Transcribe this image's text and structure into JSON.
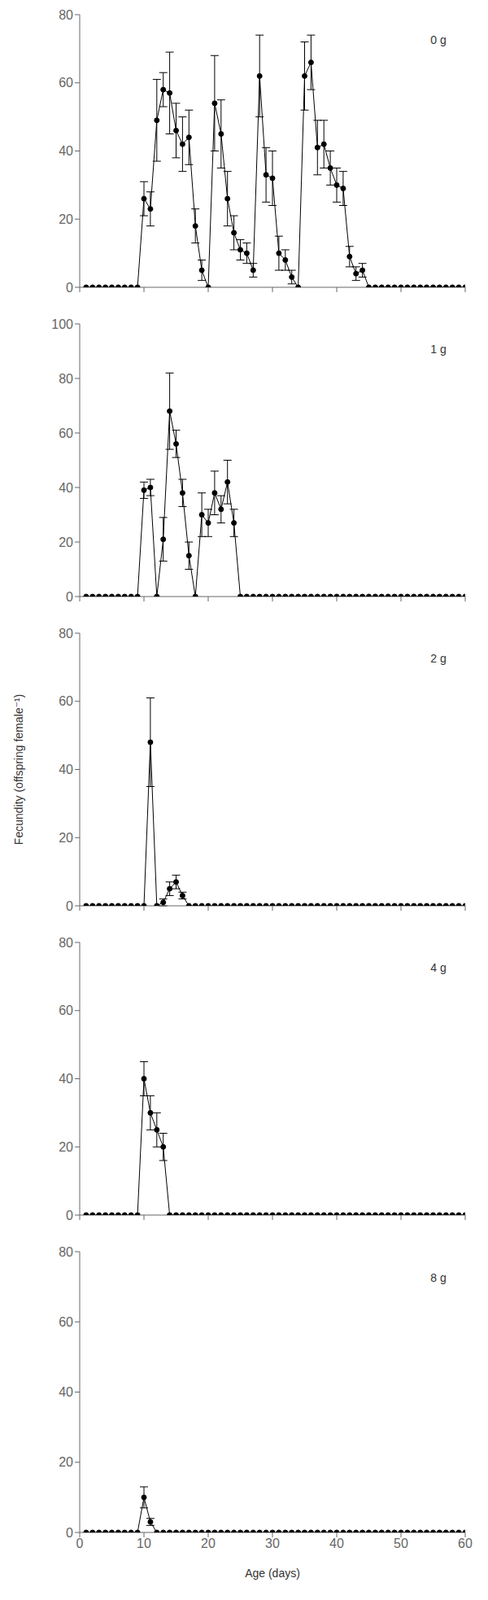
{
  "chart_data": [
    {
      "type": "line",
      "annotation": "0 g",
      "color": "#000000",
      "marker": "circle",
      "grid": false,
      "tick_labels": "y",
      "x": [
        1,
        2,
        3,
        4,
        5,
        6,
        7,
        8,
        9,
        10,
        11,
        12,
        13,
        14,
        15,
        16,
        17,
        18,
        19,
        20,
        21,
        22,
        23,
        24,
        25,
        26,
        27,
        28,
        29,
        30,
        31,
        32,
        33,
        34,
        35,
        36,
        37,
        38,
        39,
        40,
        41,
        42,
        43,
        44,
        45,
        46,
        47,
        48,
        49,
        50,
        51,
        52,
        53,
        54,
        55,
        56,
        57,
        58,
        59,
        60
      ],
      "values": [
        0,
        0,
        0,
        0,
        0,
        0,
        0,
        0,
        0,
        26,
        23,
        49,
        58,
        57,
        46,
        42,
        44,
        18,
        5,
        0,
        54,
        45,
        26,
        16,
        11,
        10,
        5,
        62,
        33,
        32,
        10,
        8,
        3,
        0,
        62,
        66,
        41,
        42,
        35,
        30,
        29,
        9,
        4,
        5,
        0,
        0,
        0,
        0,
        0,
        0,
        0,
        0,
        0,
        0,
        0,
        0,
        0,
        0,
        0,
        0
      ],
      "errors": [
        0,
        0,
        0,
        0,
        0,
        0,
        0,
        0,
        0,
        5,
        5,
        12,
        5,
        12,
        8,
        8,
        8,
        5,
        3,
        0,
        14,
        10,
        8,
        5,
        3,
        3,
        2,
        12,
        8,
        8,
        5,
        3,
        2,
        0,
        10,
        8,
        8,
        7,
        5,
        5,
        5,
        3,
        2,
        2,
        0,
        0,
        0,
        0,
        0,
        0,
        0,
        0,
        0,
        0,
        0,
        0,
        0,
        0,
        0,
        0
      ],
      "xlim": [
        0,
        60
      ],
      "ylim": [
        0,
        80
      ],
      "xticks": [
        0,
        10,
        20,
        30,
        40,
        50,
        60
      ],
      "yticks": [
        0,
        20,
        40,
        60,
        80
      ]
    },
    {
      "type": "line",
      "annotation": "1 g",
      "color": "#000000",
      "marker": "circle",
      "grid": false,
      "tick_labels": "y",
      "x": [
        1,
        2,
        3,
        4,
        5,
        6,
        7,
        8,
        9,
        10,
        11,
        12,
        13,
        14,
        15,
        16,
        17,
        18,
        19,
        20,
        21,
        22,
        23,
        24,
        25,
        26,
        27,
        28,
        29,
        30,
        31,
        32,
        33,
        34,
        35,
        36,
        37,
        38,
        39,
        40,
        41,
        42,
        43,
        44,
        45,
        46,
        47,
        48,
        49,
        50,
        51,
        52,
        53,
        54,
        55,
        56,
        57,
        58,
        59,
        60
      ],
      "values": [
        0,
        0,
        0,
        0,
        0,
        0,
        0,
        0,
        0,
        39,
        40,
        0,
        21,
        68,
        56,
        38,
        15,
        0,
        30,
        27,
        38,
        32,
        42,
        27,
        0,
        0,
        0,
        0,
        0,
        0,
        0,
        0,
        0,
        0,
        0,
        0,
        0,
        0,
        0,
        0,
        0,
        0,
        0,
        0,
        0,
        0,
        0,
        0,
        0,
        0,
        0,
        0,
        0,
        0,
        0,
        0,
        0,
        0,
        0,
        0
      ],
      "errors": [
        0,
        0,
        0,
        0,
        0,
        0,
        0,
        0,
        0,
        3,
        3,
        0,
        8,
        14,
        5,
        5,
        5,
        0,
        8,
        5,
        8,
        5,
        8,
        5,
        0,
        0,
        0,
        0,
        0,
        0,
        0,
        0,
        0,
        0,
        0,
        0,
        0,
        0,
        0,
        0,
        0,
        0,
        0,
        0,
        0,
        0,
        0,
        0,
        0,
        0,
        0,
        0,
        0,
        0,
        0,
        0,
        0,
        0,
        0,
        0
      ],
      "xlim": [
        0,
        60
      ],
      "ylim": [
        0,
        100
      ],
      "xticks": [
        0,
        10,
        20,
        30,
        40,
        50,
        60
      ],
      "yticks": [
        0,
        20,
        40,
        60,
        80,
        100
      ]
    },
    {
      "type": "line",
      "annotation": "2 g",
      "color": "#000000",
      "marker": "circle",
      "grid": false,
      "tick_labels": "y",
      "ylabel": "Fecundity (offspring female⁻¹)",
      "x": [
        1,
        2,
        3,
        4,
        5,
        6,
        7,
        8,
        9,
        10,
        11,
        12,
        13,
        14,
        15,
        16,
        17,
        18,
        19,
        20,
        21,
        22,
        23,
        24,
        25,
        26,
        27,
        28,
        29,
        30,
        31,
        32,
        33,
        34,
        35,
        36,
        37,
        38,
        39,
        40,
        41,
        42,
        43,
        44,
        45,
        46,
        47,
        48,
        49,
        50,
        51,
        52,
        53,
        54,
        55,
        56,
        57,
        58,
        59,
        60
      ],
      "values": [
        0,
        0,
        0,
        0,
        0,
        0,
        0,
        0,
        0,
        0,
        48,
        0,
        1,
        5,
        7,
        3,
        0,
        0,
        0,
        0,
        0,
        0,
        0,
        0,
        0,
        0,
        0,
        0,
        0,
        0,
        0,
        0,
        0,
        0,
        0,
        0,
        0,
        0,
        0,
        0,
        0,
        0,
        0,
        0,
        0,
        0,
        0,
        0,
        0,
        0,
        0,
        0,
        0,
        0,
        0,
        0,
        0,
        0,
        0,
        0
      ],
      "errors": [
        0,
        0,
        0,
        0,
        0,
        0,
        0,
        0,
        0,
        0,
        13,
        0,
        1,
        2,
        2,
        1,
        0,
        0,
        0,
        0,
        0,
        0,
        0,
        0,
        0,
        0,
        0,
        0,
        0,
        0,
        0,
        0,
        0,
        0,
        0,
        0,
        0,
        0,
        0,
        0,
        0,
        0,
        0,
        0,
        0,
        0,
        0,
        0,
        0,
        0,
        0,
        0,
        0,
        0,
        0,
        0,
        0,
        0,
        0,
        0
      ],
      "xlim": [
        0,
        60
      ],
      "ylim": [
        0,
        80
      ],
      "xticks": [
        0,
        10,
        20,
        30,
        40,
        50,
        60
      ],
      "yticks": [
        0,
        20,
        40,
        60,
        80
      ]
    },
    {
      "type": "line",
      "annotation": "4 g",
      "color": "#000000",
      "marker": "circle",
      "grid": false,
      "tick_labels": "y",
      "x": [
        1,
        2,
        3,
        4,
        5,
        6,
        7,
        8,
        9,
        10,
        11,
        12,
        13,
        14,
        15,
        16,
        17,
        18,
        19,
        20,
        21,
        22,
        23,
        24,
        25,
        26,
        27,
        28,
        29,
        30,
        31,
        32,
        33,
        34,
        35,
        36,
        37,
        38,
        39,
        40,
        41,
        42,
        43,
        44,
        45,
        46,
        47,
        48,
        49,
        50,
        51,
        52,
        53,
        54,
        55,
        56,
        57,
        58,
        59,
        60
      ],
      "values": [
        0,
        0,
        0,
        0,
        0,
        0,
        0,
        0,
        0,
        40,
        30,
        25,
        20,
        0,
        0,
        0,
        0,
        0,
        0,
        0,
        0,
        0,
        0,
        0,
        0,
        0,
        0,
        0,
        0,
        0,
        0,
        0,
        0,
        0,
        0,
        0,
        0,
        0,
        0,
        0,
        0,
        0,
        0,
        0,
        0,
        0,
        0,
        0,
        0,
        0,
        0,
        0,
        0,
        0,
        0,
        0,
        0,
        0,
        0,
        0
      ],
      "errors": [
        0,
        0,
        0,
        0,
        0,
        0,
        0,
        0,
        0,
        5,
        5,
        5,
        4,
        0,
        0,
        0,
        0,
        0,
        0,
        0,
        0,
        0,
        0,
        0,
        0,
        0,
        0,
        0,
        0,
        0,
        0,
        0,
        0,
        0,
        0,
        0,
        0,
        0,
        0,
        0,
        0,
        0,
        0,
        0,
        0,
        0,
        0,
        0,
        0,
        0,
        0,
        0,
        0,
        0,
        0,
        0,
        0,
        0,
        0,
        0
      ],
      "xlim": [
        0,
        60
      ],
      "ylim": [
        0,
        80
      ],
      "xticks": [
        0,
        10,
        20,
        30,
        40,
        50,
        60
      ],
      "yticks": [
        0,
        20,
        40,
        60,
        80
      ]
    },
    {
      "type": "line",
      "annotation": "8 g",
      "color": "#000000",
      "marker": "circle",
      "grid": false,
      "xlabel": "Age (days)",
      "x": [
        1,
        2,
        3,
        4,
        5,
        6,
        7,
        8,
        9,
        10,
        11,
        12,
        13,
        14,
        15,
        16,
        17,
        18,
        19,
        20,
        21,
        22,
        23,
        24,
        25,
        26,
        27,
        28,
        29,
        30,
        31,
        32,
        33,
        34,
        35,
        36,
        37,
        38,
        39,
        40,
        41,
        42,
        43,
        44,
        45,
        46,
        47,
        48,
        49,
        50,
        51,
        52,
        53,
        54,
        55,
        56,
        57,
        58,
        59,
        60
      ],
      "values": [
        0,
        0,
        0,
        0,
        0,
        0,
        0,
        0,
        0,
        10,
        3,
        0,
        0,
        0,
        0,
        0,
        0,
        0,
        0,
        0,
        0,
        0,
        0,
        0,
        0,
        0,
        0,
        0,
        0,
        0,
        0,
        0,
        0,
        0,
        0,
        0,
        0,
        0,
        0,
        0,
        0,
        0,
        0,
        0,
        0,
        0,
        0,
        0,
        0,
        0,
        0,
        0,
        0,
        0,
        0,
        0,
        0,
        0,
        0,
        0
      ],
      "errors": [
        0,
        0,
        0,
        0,
        0,
        0,
        0,
        0,
        0,
        3,
        1,
        0,
        0,
        0,
        0,
        0,
        0,
        0,
        0,
        0,
        0,
        0,
        0,
        0,
        0,
        0,
        0,
        0,
        0,
        0,
        0,
        0,
        0,
        0,
        0,
        0,
        0,
        0,
        0,
        0,
        0,
        0,
        0,
        0,
        0,
        0,
        0,
        0,
        0,
        0,
        0,
        0,
        0,
        0,
        0,
        0,
        0,
        0,
        0,
        0
      ],
      "xlim": [
        0,
        60
      ],
      "ylim": [
        0,
        80
      ],
      "xticks": [
        0,
        10,
        20,
        30,
        40,
        50,
        60
      ],
      "yticks": [
        0,
        20,
        40,
        60,
        80
      ]
    }
  ]
}
